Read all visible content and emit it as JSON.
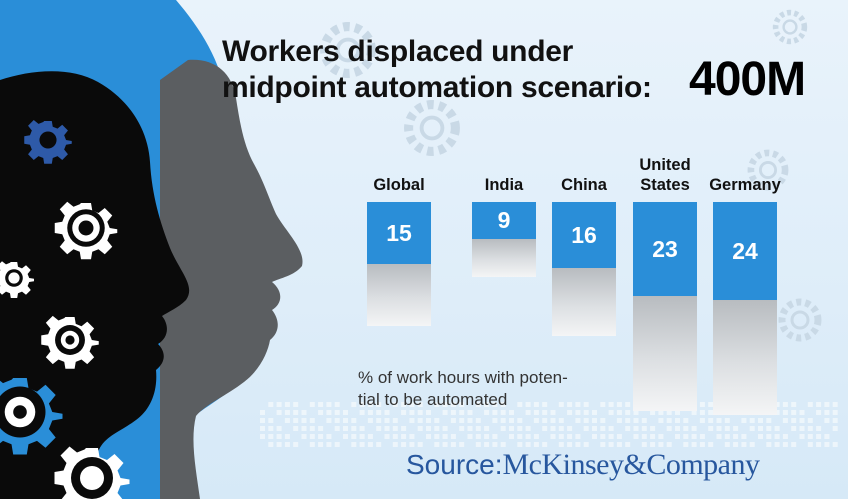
{
  "title": {
    "line1": "Workers displaced under",
    "line2": "midpoint automation scenario:"
  },
  "headline_value": "400M",
  "chart_data": {
    "type": "bar",
    "categories": [
      "Global",
      "India",
      "China",
      "United States",
      "Germany"
    ],
    "category_label_lines": [
      [
        "Global"
      ],
      [
        "India"
      ],
      [
        "China"
      ],
      [
        "United",
        "States"
      ],
      [
        "Germany"
      ]
    ],
    "values": [
      15,
      9,
      16,
      23,
      24
    ],
    "value_labels": [
      "15",
      "9",
      "16",
      "23",
      "24"
    ],
    "bar_color": "#2a8ed8",
    "unit_note_lines": [
      "% of work hours with poten-",
      "tial to be automated"
    ]
  },
  "source": {
    "label": "Source:",
    "name": "McKinsey&Company"
  },
  "colors": {
    "background": "#e4f0fa",
    "head_blue": "#2a8ed8",
    "head_black": "#0a0a0a",
    "head_gray": "#5b5e61",
    "source_text": "#27579e"
  },
  "icons": [
    "gear-icon",
    "head-silhouette-icon"
  ]
}
